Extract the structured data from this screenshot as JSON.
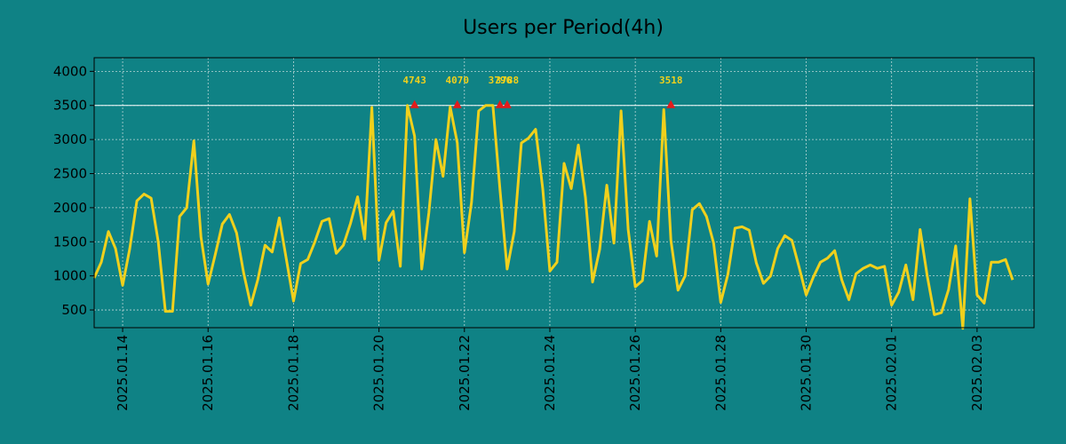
{
  "colors": {
    "background": "#0f8285",
    "line": "#f0d01c",
    "marker": "#e21b1b",
    "grid": "#b9d6d6",
    "threshold": "#ffffff"
  },
  "chart_data": {
    "type": "line",
    "title": "Users per Period(4h)",
    "xlabel": "",
    "ylabel": "",
    "x_start": "2025.01.13 08:00",
    "x_step_hours": 4,
    "xlim": [
      "2025.01.13 08:00",
      "2025.02.04 08:00"
    ],
    "ylim": [
      240,
      4200
    ],
    "y_ticks": [
      500,
      1000,
      1500,
      2000,
      2500,
      3000,
      3500,
      4000
    ],
    "x_ticks": [
      "2025.01.14",
      "2025.01.16",
      "2025.01.18",
      "2025.01.20",
      "2025.01.22",
      "2025.01.24",
      "2025.01.26",
      "2025.01.28",
      "2025.01.30",
      "2025.02.01",
      "2025.02.03"
    ],
    "grid": true,
    "threshold": 3500,
    "series": [
      {
        "name": "",
        "values": [
          970,
          1200,
          1650,
          1400,
          860,
          1400,
          2100,
          2200,
          2140,
          1500,
          480,
          480,
          1870,
          2000,
          2980,
          1570,
          880,
          1310,
          1760,
          1900,
          1630,
          1040,
          570,
          950,
          1450,
          1350,
          1850,
          1240,
          630,
          1180,
          1240,
          1500,
          1800,
          1840,
          1330,
          1450,
          1770,
          2160,
          1540,
          3470,
          1230,
          1780,
          1950,
          1140,
          3500,
          3050,
          1100,
          1920,
          3000,
          2460,
          3480,
          2950,
          1340,
          2080,
          3420,
          3500,
          3500,
          2260,
          1100,
          1650,
          2950,
          3020,
          3150,
          2280,
          1070,
          1200,
          2650,
          2280,
          2920,
          2150,
          910,
          1390,
          2330,
          1480,
          3420,
          1680,
          840,
          930,
          1800,
          1290,
          3440,
          1520,
          790,
          1000,
          1970,
          2060,
          1870,
          1480,
          610,
          1020,
          1700,
          1720,
          1670,
          1190,
          890,
          1000,
          1400,
          1590,
          1520,
          1130,
          720,
          980,
          1200,
          1260,
          1370,
          940,
          650,
          1030,
          1110,
          1160,
          1110,
          1140,
          570,
          760,
          1160,
          650,
          1680,
          1000,
          430,
          460,
          800,
          1440,
          230,
          2130,
          720,
          600,
          1200,
          1200,
          1240,
          940
        ]
      }
    ],
    "peaks": [
      {
        "x": "2025.01.20 20:00",
        "value": 4743,
        "label": "4743"
      },
      {
        "x": "2025.01.21 20:00",
        "value": 4070,
        "label": "4070"
      },
      {
        "x": "2025.01.22 20:00",
        "value": 3796,
        "label": "3796"
      },
      {
        "x": "2025.01.23 00:00",
        "value": 3788,
        "label": "3788"
      },
      {
        "x": "2025.01.26 20:00",
        "value": 3518,
        "label": "3518"
      }
    ]
  }
}
